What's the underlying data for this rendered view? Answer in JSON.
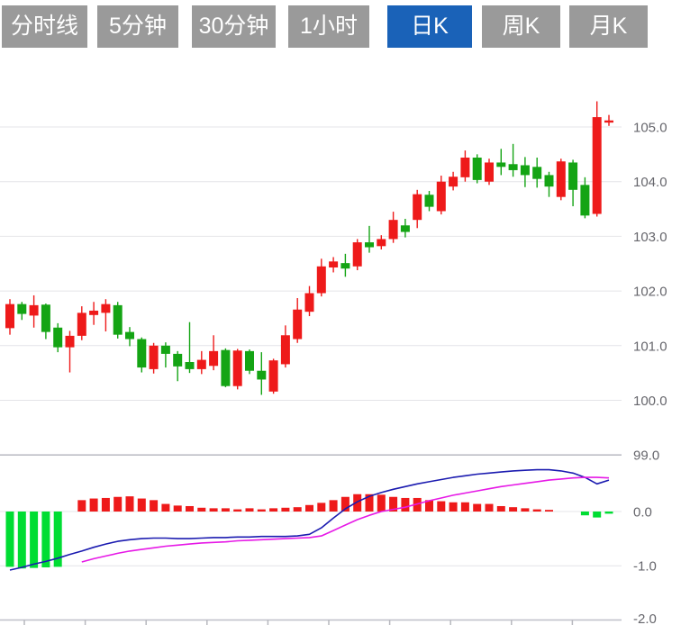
{
  "toolbar": {
    "tabs": [
      {
        "label": "分时线",
        "active": false
      },
      {
        "label": "5分钟",
        "active": false
      },
      {
        "label": "30分钟",
        "active": false
      },
      {
        "label": "1小时",
        "active": false
      },
      {
        "label": "日K",
        "active": true
      },
      {
        "label": "周K",
        "active": false
      },
      {
        "label": "月K",
        "active": false
      }
    ]
  },
  "chart_data": {
    "type": "candlestick",
    "panels": [
      "price-kline",
      "macd-indicator"
    ],
    "legend_position": "none",
    "grid": true,
    "price_axis": {
      "side": "right",
      "ticks": [
        105.0,
        104.0,
        103.0,
        102.0,
        101.0,
        100.0,
        99.0
      ],
      "range": [
        98.4,
        105.6
      ]
    },
    "indicator_axis": {
      "side": "right",
      "ticks": [
        0.0,
        -1.0,
        -2.0
      ],
      "range": [
        0.9,
        -2.1
      ]
    },
    "candles_ohlc": [
      [
        101.32,
        101.85,
        101.2,
        101.76
      ],
      [
        101.76,
        101.8,
        101.47,
        101.58
      ],
      [
        101.55,
        101.92,
        101.33,
        101.74
      ],
      [
        101.75,
        101.77,
        101.12,
        101.25
      ],
      [
        101.33,
        101.41,
        100.88,
        100.97
      ],
      [
        100.97,
        101.27,
        100.51,
        101.18
      ],
      [
        101.18,
        101.72,
        101.1,
        101.6
      ],
      [
        101.56,
        101.8,
        101.38,
        101.64
      ],
      [
        101.6,
        101.85,
        101.26,
        101.76
      ],
      [
        101.74,
        101.8,
        101.13,
        101.2
      ],
      [
        101.25,
        101.34,
        100.99,
        101.12
      ],
      [
        101.12,
        101.15,
        100.51,
        100.6
      ],
      [
        100.57,
        101.05,
        100.49,
        101.0
      ],
      [
        101.0,
        101.06,
        100.6,
        100.85
      ],
      [
        100.85,
        100.9,
        100.35,
        100.62
      ],
      [
        100.7,
        101.43,
        100.5,
        100.57
      ],
      [
        100.57,
        100.9,
        100.48,
        100.74
      ],
      [
        100.63,
        101.19,
        100.55,
        100.9
      ],
      [
        100.92,
        100.95,
        100.24,
        100.26
      ],
      [
        100.26,
        100.94,
        100.2,
        100.91
      ],
      [
        100.9,
        100.93,
        100.48,
        100.54
      ],
      [
        100.54,
        100.88,
        100.1,
        100.38
      ],
      [
        100.16,
        100.76,
        100.12,
        100.73
      ],
      [
        100.66,
        101.37,
        100.6,
        101.19
      ],
      [
        101.12,
        101.87,
        101.05,
        101.66
      ],
      [
        101.62,
        102.09,
        101.54,
        101.96
      ],
      [
        101.96,
        102.59,
        101.9,
        102.45
      ],
      [
        102.43,
        102.62,
        102.34,
        102.54
      ],
      [
        102.51,
        102.68,
        102.26,
        102.41
      ],
      [
        102.45,
        102.95,
        102.38,
        102.89
      ],
      [
        102.89,
        103.19,
        102.7,
        102.8
      ],
      [
        102.82,
        103.02,
        102.76,
        102.95
      ],
      [
        102.95,
        103.45,
        102.88,
        103.3
      ],
      [
        103.2,
        103.32,
        102.98,
        103.08
      ],
      [
        103.3,
        103.85,
        103.15,
        103.77
      ],
      [
        103.76,
        103.83,
        103.46,
        103.54
      ],
      [
        103.46,
        104.11,
        103.4,
        104.0
      ],
      [
        103.91,
        104.18,
        103.84,
        104.09
      ],
      [
        104.08,
        104.57,
        104.0,
        104.44
      ],
      [
        104.44,
        104.5,
        103.97,
        104.03
      ],
      [
        104.0,
        104.42,
        103.94,
        104.35
      ],
      [
        104.35,
        104.6,
        104.12,
        104.27
      ],
      [
        104.32,
        104.69,
        104.09,
        104.21
      ],
      [
        104.3,
        104.45,
        103.9,
        104.12
      ],
      [
        104.27,
        104.44,
        103.89,
        104.05
      ],
      [
        104.12,
        104.18,
        103.72,
        103.91
      ],
      [
        103.72,
        104.42,
        103.66,
        104.37
      ],
      [
        104.35,
        104.4,
        103.55,
        103.85
      ],
      [
        103.94,
        104.08,
        103.33,
        103.38
      ],
      [
        103.41,
        105.47,
        103.36,
        105.18
      ],
      [
        105.08,
        105.22,
        105.02,
        105.12
      ]
    ],
    "macd": {
      "histogram": [
        -1.02,
        -1.05,
        -1.04,
        -1.03,
        -1.02,
        0,
        0.21,
        0.24,
        0.25,
        0.27,
        0.28,
        0.24,
        0.21,
        0.14,
        0.11,
        0.1,
        0.07,
        0.06,
        0.06,
        0.04,
        0.06,
        0.04,
        0.06,
        0.07,
        0.08,
        0.12,
        0.16,
        0.21,
        0.27,
        0.32,
        0.32,
        0.31,
        0.27,
        0.25,
        0.25,
        0.21,
        0.19,
        0.17,
        0.17,
        0.14,
        0.14,
        0.1,
        0.08,
        0.06,
        0.04,
        0.03,
        0,
        0,
        -0.07,
        -0.11,
        -0.04
      ],
      "dif": [
        -1.08,
        -1.03,
        -0.97,
        -0.92,
        -0.86,
        -0.79,
        -0.73,
        -0.66,
        -0.6,
        -0.55,
        -0.52,
        -0.5,
        -0.49,
        -0.49,
        -0.5,
        -0.5,
        -0.49,
        -0.48,
        -0.48,
        -0.47,
        -0.47,
        -0.46,
        -0.46,
        -0.46,
        -0.45,
        -0.42,
        -0.3,
        -0.12,
        0.05,
        0.18,
        0.28,
        0.35,
        0.41,
        0.46,
        0.51,
        0.55,
        0.59,
        0.63,
        0.66,
        0.69,
        0.71,
        0.73,
        0.75,
        0.76,
        0.77,
        0.77,
        0.75,
        0.71,
        0.63,
        0.51,
        0.58
      ],
      "dea": [
        null,
        null,
        null,
        null,
        null,
        null,
        -0.93,
        -0.87,
        -0.82,
        -0.77,
        -0.73,
        -0.7,
        -0.67,
        -0.64,
        -0.62,
        -0.6,
        -0.58,
        -0.57,
        -0.56,
        -0.54,
        -0.53,
        -0.52,
        -0.51,
        -0.5,
        -0.49,
        -0.48,
        -0.45,
        -0.35,
        -0.25,
        -0.15,
        -0.07,
        0.0,
        0.04,
        0.08,
        0.14,
        0.2,
        0.25,
        0.3,
        0.34,
        0.38,
        0.42,
        0.46,
        0.49,
        0.52,
        0.55,
        0.58,
        0.6,
        0.62,
        0.63,
        0.63,
        0.62
      ]
    },
    "colors": {
      "up": "#ee1a1a",
      "down": "#14a414",
      "hist_up": "#ee1a1a",
      "hist_down": "#00dd33",
      "dif_line": "#1b1bb0",
      "dea_line": "#e619e6",
      "active_tab": "#1a62b8",
      "inactive_tab": "#9a9a9a",
      "gridline": "#e4e4e8",
      "axis_label": "#66666c"
    }
  }
}
